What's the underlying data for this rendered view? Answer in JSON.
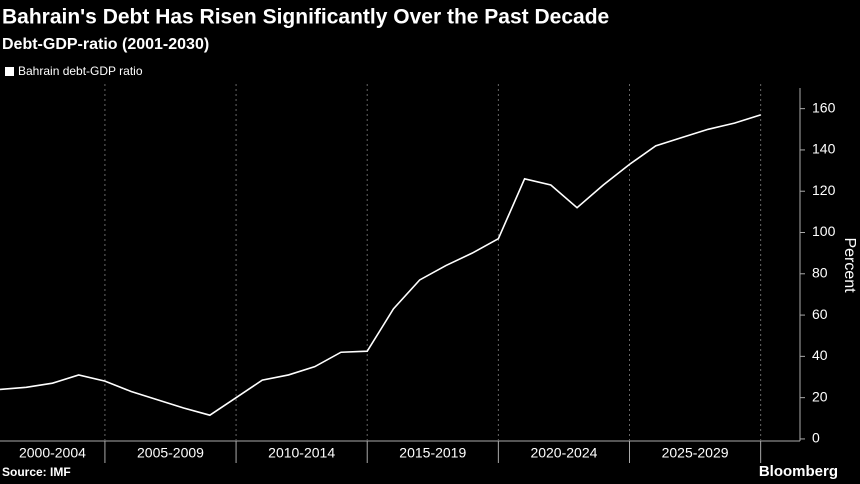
{
  "chart_data": {
    "type": "line",
    "title": "Bahrain's Debt Has Risen Significantly Over the Past Decade",
    "subtitle": "Debt-GDP-ratio (2001-2030)",
    "y_label": "Percent",
    "source": "Source: IMF",
    "brand": "Bloomberg",
    "x": [
      2001,
      2002,
      2003,
      2004,
      2005,
      2006,
      2007,
      2008,
      2009,
      2010,
      2011,
      2012,
      2013,
      2014,
      2015,
      2016,
      2017,
      2018,
      2019,
      2020,
      2021,
      2022,
      2023,
      2024,
      2025,
      2026,
      2027,
      2028,
      2029,
      2030
    ],
    "series": [
      {
        "name": "Bahrain debt-GDP ratio",
        "color": "#ffffff",
        "values": [
          24,
          25,
          27,
          31,
          28,
          23,
          19,
          15,
          11.5,
          20,
          28.5,
          31,
          35,
          42,
          42.5,
          63,
          77,
          84,
          90,
          97,
          126,
          123,
          112,
          123,
          133,
          142,
          146,
          150,
          153,
          157
        ]
      }
    ],
    "period_labels": [
      "2000-2004",
      "2005-2009",
      "2010-2014",
      "2015-2019",
      "2020-2024",
      "2025-2029"
    ],
    "xlim": [
      2001,
      2031.5
    ],
    "xticks": [
      2005,
      2010,
      2015,
      2020,
      2025,
      2030
    ],
    "ylim": [
      -1,
      170
    ],
    "yticks": [
      0,
      20,
      40,
      60,
      80,
      100,
      120,
      140,
      160
    ],
    "grid": true
  }
}
